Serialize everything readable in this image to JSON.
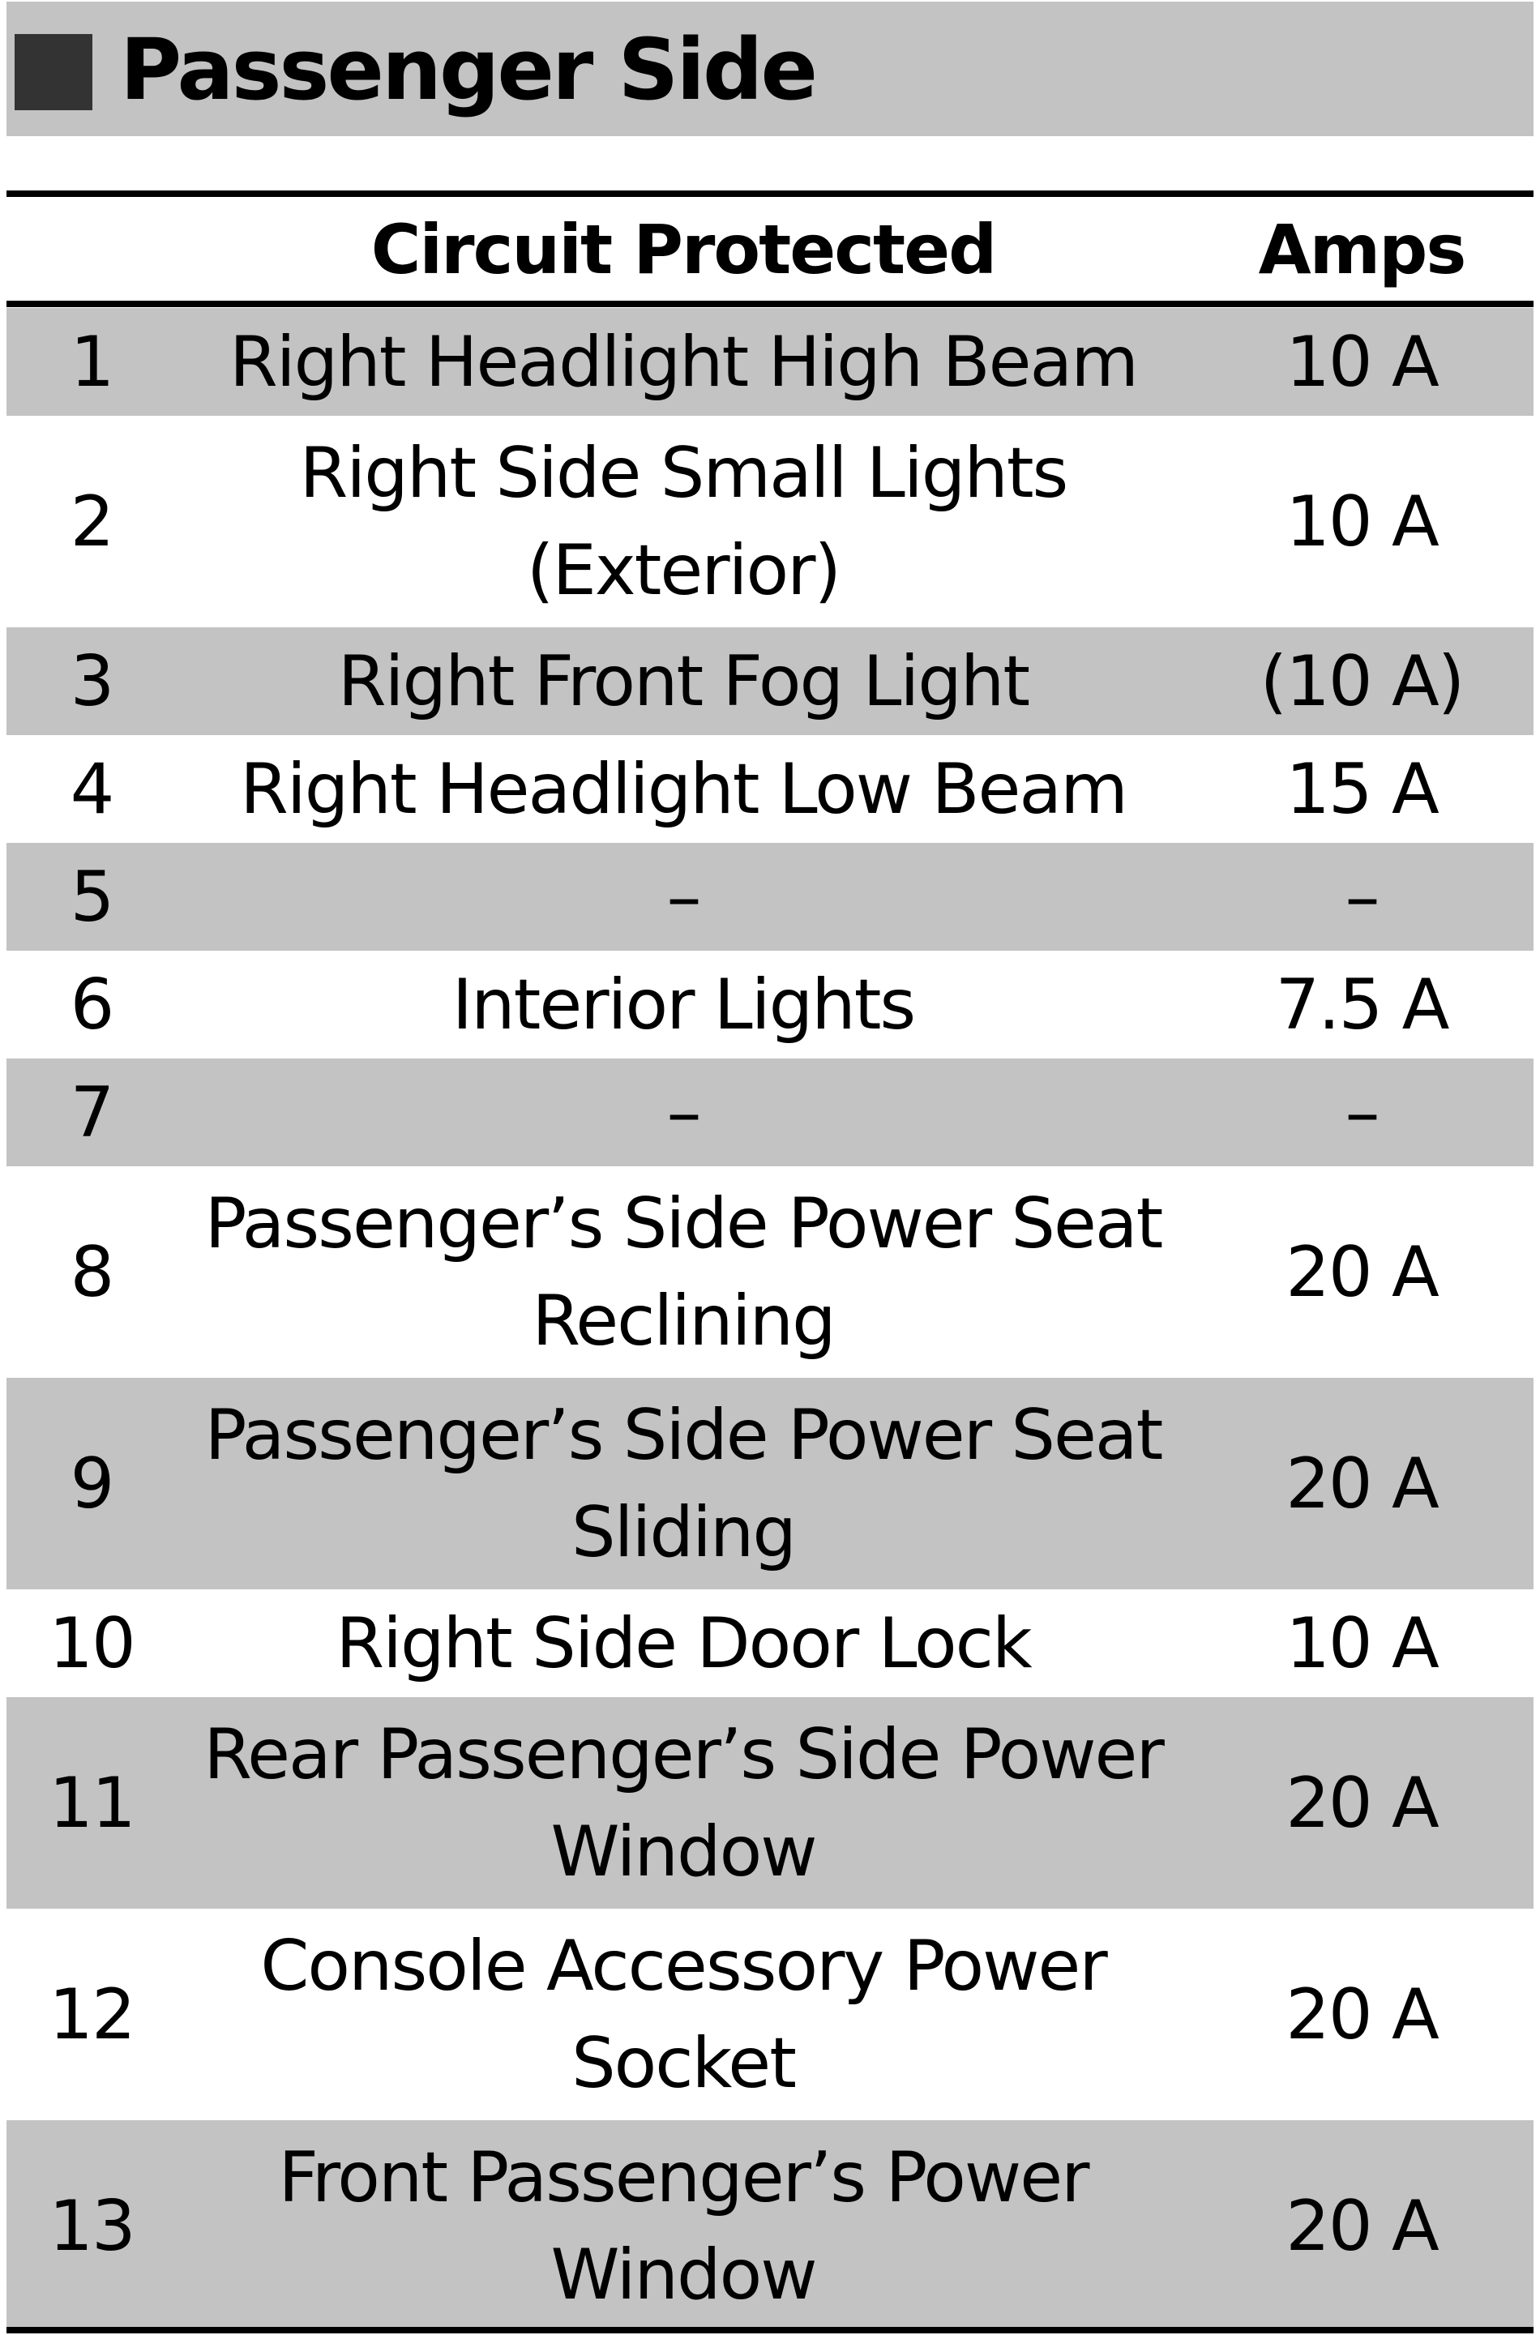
{
  "title": "Passenger Side",
  "colors": {
    "row_shade": "#c3c3c3",
    "title_marker": "#333333"
  },
  "table": {
    "headers": {
      "number": "",
      "circuit": "Circuit Protected",
      "amps": "Amps"
    },
    "rows": [
      {
        "number": "1",
        "circuit": "Right Headlight High Beam",
        "amps": "10 A"
      },
      {
        "number": "2",
        "circuit": "Right Side Small Lights (Exterior)",
        "amps": "10 A"
      },
      {
        "number": "3",
        "circuit": "Right Front Fog Light",
        "amps": "(10 A)"
      },
      {
        "number": "4",
        "circuit": "Right Headlight Low Beam",
        "amps": "15 A"
      },
      {
        "number": "5",
        "circuit": "–",
        "amps": "–"
      },
      {
        "number": "6",
        "circuit": "Interior Lights",
        "amps": "7.5 A"
      },
      {
        "number": "7",
        "circuit": "–",
        "amps": "–"
      },
      {
        "number": "8",
        "circuit": "Passenger’s Side Power Seat Reclining",
        "amps": "20 A"
      },
      {
        "number": "9",
        "circuit": "Passenger’s Side Power Seat Sliding",
        "amps": "20 A"
      },
      {
        "number": "10",
        "circuit": "Right Side Door Lock",
        "amps": "10 A"
      },
      {
        "number": "11",
        "circuit": "Rear Passenger’s Side Power Window",
        "amps": "20 A"
      },
      {
        "number": "12",
        "circuit": "Console Accessory Power Socket",
        "amps": "20 A"
      },
      {
        "number": "13",
        "circuit": "Front Passenger’s Power Window",
        "amps": "20 A"
      }
    ]
  }
}
